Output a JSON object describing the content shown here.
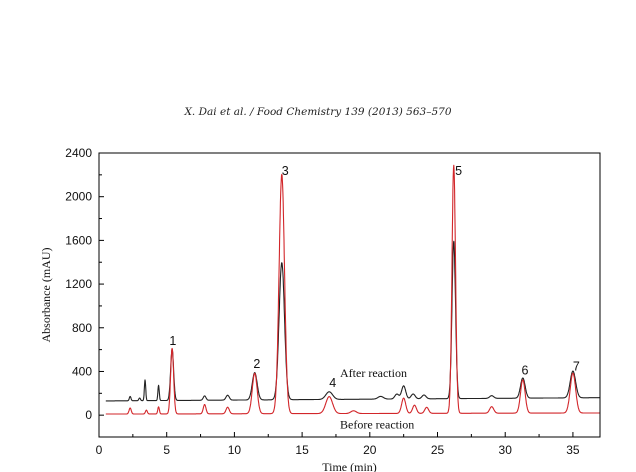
{
  "header": {
    "citation": "X. Dai et al. / Food Chemistry 139 (2013) 563–570"
  },
  "chart_data": {
    "type": "line",
    "xlabel": "Time (min)",
    "ylabel": "Absorbance (mAU)",
    "xlim": [
      0,
      37
    ],
    "ylim": [
      -200,
      2400
    ],
    "xticks": [
      0,
      5,
      10,
      15,
      20,
      25,
      30,
      35
    ],
    "yticks": [
      0,
      400,
      800,
      1200,
      1600,
      2000,
      2400
    ],
    "grid": false,
    "annotations": [
      {
        "text": "After reaction",
        "x": 17.8,
        "y": 350
      },
      {
        "text": "Before reaction",
        "x": 17.8,
        "y": -120
      }
    ],
    "peak_labels": [
      {
        "label": "1",
        "x": 5.2,
        "y": 640
      },
      {
        "label": "2",
        "x": 11.4,
        "y": 430
      },
      {
        "label": "3",
        "x": 13.5,
        "y": 2200
      },
      {
        "label": "4",
        "x": 17.0,
        "y": 260
      },
      {
        "label": "5",
        "x": 26.3,
        "y": 2200
      },
      {
        "label": "6",
        "x": 31.2,
        "y": 370
      },
      {
        "label": "7",
        "x": 35.0,
        "y": 410
      }
    ],
    "series": [
      {
        "color": "#222222",
        "baseline": 130,
        "end_value": 160,
        "peaks": [
          {
            "x": 2.3,
            "h": 40,
            "w": 0.06
          },
          {
            "x": 3.0,
            "h": 25,
            "w": 0.06
          },
          {
            "x": 3.4,
            "h": 190,
            "w": 0.05
          },
          {
            "x": 4.4,
            "h": 140,
            "w": 0.05
          },
          {
            "x": 5.4,
            "h": 465,
            "w": 0.11
          },
          {
            "x": 7.8,
            "h": 40,
            "w": 0.1
          },
          {
            "x": 9.5,
            "h": 45,
            "w": 0.12
          },
          {
            "x": 11.5,
            "h": 250,
            "w": 0.18
          },
          {
            "x": 13.5,
            "h": 1255,
            "w": 0.2
          },
          {
            "x": 17.0,
            "h": 70,
            "w": 0.25
          },
          {
            "x": 20.8,
            "h": 25,
            "w": 0.2
          },
          {
            "x": 22.0,
            "h": 45,
            "w": 0.15
          },
          {
            "x": 22.5,
            "h": 120,
            "w": 0.15
          },
          {
            "x": 23.2,
            "h": 45,
            "w": 0.15
          },
          {
            "x": 24.0,
            "h": 35,
            "w": 0.15
          },
          {
            "x": 26.2,
            "h": 1440,
            "w": 0.13
          },
          {
            "x": 29.0,
            "h": 25,
            "w": 0.15
          },
          {
            "x": 31.3,
            "h": 185,
            "w": 0.17
          },
          {
            "x": 35.0,
            "h": 245,
            "w": 0.2
          }
        ]
      },
      {
        "color": "#d2262a",
        "baseline": 10,
        "end_value": 20,
        "peaks": [
          {
            "x": 2.3,
            "h": 55,
            "w": 0.08
          },
          {
            "x": 3.5,
            "h": 35,
            "w": 0.07
          },
          {
            "x": 4.4,
            "h": 65,
            "w": 0.06
          },
          {
            "x": 5.4,
            "h": 600,
            "w": 0.11
          },
          {
            "x": 7.8,
            "h": 85,
            "w": 0.1
          },
          {
            "x": 9.5,
            "h": 60,
            "w": 0.12
          },
          {
            "x": 11.5,
            "h": 370,
            "w": 0.18
          },
          {
            "x": 13.5,
            "h": 2190,
            "w": 0.2
          },
          {
            "x": 17.0,
            "h": 155,
            "w": 0.25
          },
          {
            "x": 18.8,
            "h": 25,
            "w": 0.2
          },
          {
            "x": 22.5,
            "h": 140,
            "w": 0.15
          },
          {
            "x": 23.3,
            "h": 75,
            "w": 0.14
          },
          {
            "x": 24.2,
            "h": 55,
            "w": 0.14
          },
          {
            "x": 26.2,
            "h": 2270,
            "w": 0.13
          },
          {
            "x": 29.0,
            "h": 60,
            "w": 0.15
          },
          {
            "x": 31.3,
            "h": 305,
            "w": 0.17
          },
          {
            "x": 35.0,
            "h": 365,
            "w": 0.2
          }
        ]
      }
    ]
  }
}
